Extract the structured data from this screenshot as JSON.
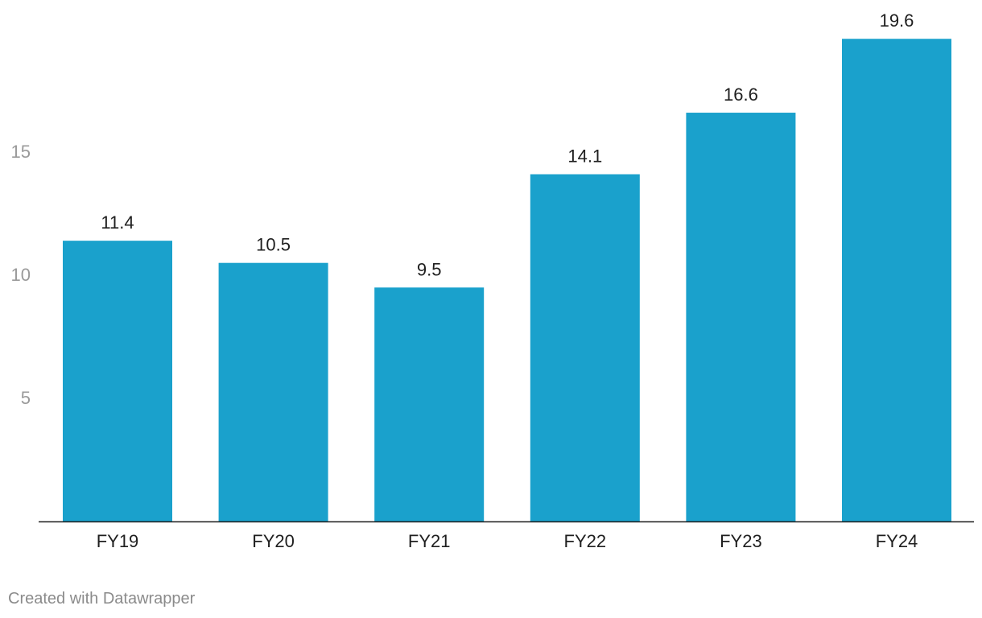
{
  "chart_data": {
    "type": "bar",
    "categories": [
      "FY19",
      "FY20",
      "FY21",
      "FY22",
      "FY23",
      "FY24"
    ],
    "values": [
      11.4,
      10.5,
      9.5,
      14.1,
      16.6,
      19.6
    ],
    "value_labels": [
      "11.4",
      "10.5",
      "9.5",
      "14.1",
      "16.6",
      "19.6"
    ],
    "yticks": [
      5,
      10,
      15
    ],
    "ytick_labels": [
      "5",
      "10",
      "15"
    ],
    "ylim": [
      0,
      19.6
    ],
    "grid": false,
    "legend": "none",
    "colors": {
      "bar": "#1aa1cc",
      "axis": "#1f1f1f",
      "tick_label": "#9a9a9a",
      "value_label": "#1f1f1f",
      "category_label": "#1f1f1f"
    }
  },
  "footer": {
    "credit": "Created with Datawrapper"
  }
}
